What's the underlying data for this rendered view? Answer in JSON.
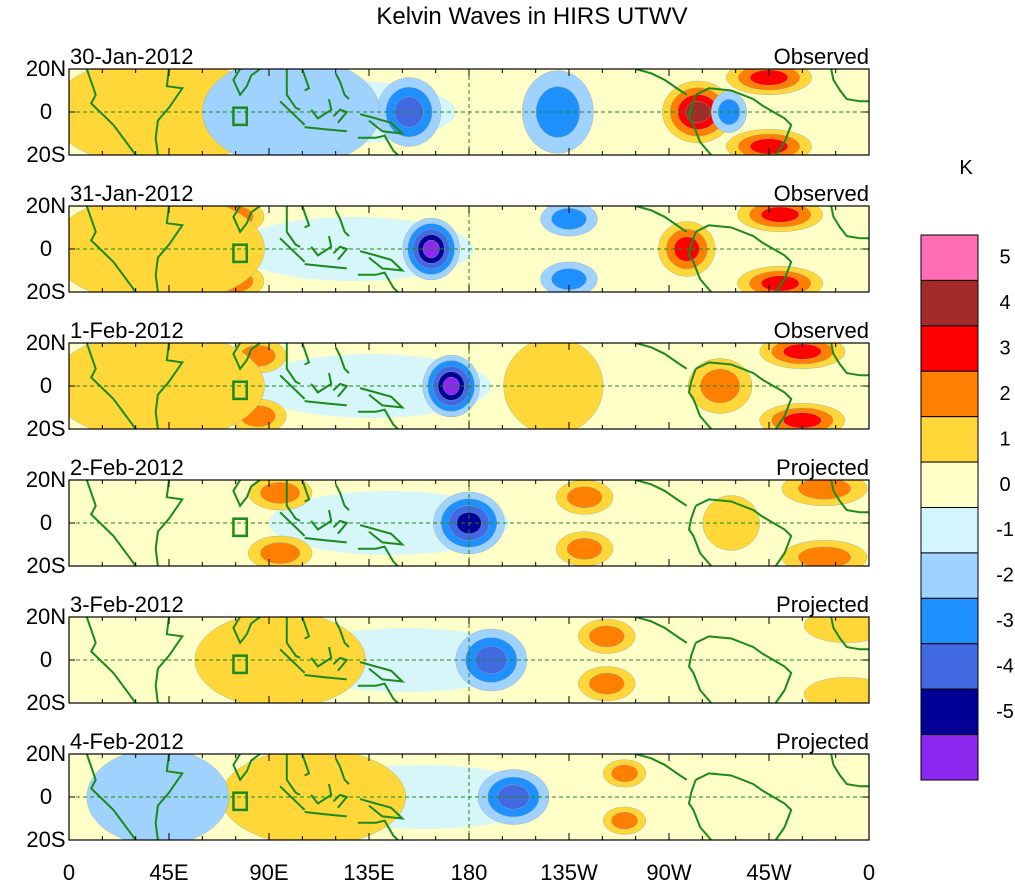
{
  "title": "Kelvin Waves in HIRS UTWV",
  "chart_data": {
    "type": "heatmap",
    "variable": "HIRS UTWV",
    "units_label": "K",
    "lat_ticks": [
      "20N",
      "0",
      "20S"
    ],
    "lat_range": [
      -20,
      20
    ],
    "lon_range": [
      0,
      360
    ],
    "lon_ticks": [
      {
        "lon": 0,
        "label": "0"
      },
      {
        "lon": 45,
        "label": "45E"
      },
      {
        "lon": 90,
        "label": "90E"
      },
      {
        "lon": 135,
        "label": "135E"
      },
      {
        "lon": 180,
        "label": "180"
      },
      {
        "lon": 225,
        "label": "135W"
      },
      {
        "lon": 270,
        "label": "90W"
      },
      {
        "lon": 315,
        "label": "45W"
      },
      {
        "lon": 360,
        "label": "0"
      }
    ],
    "colorbar": {
      "labels": [
        "5",
        "4",
        "3",
        "2",
        "1",
        "0",
        "-1",
        "-2",
        "-3",
        "-4",
        "-5"
      ],
      "colors": [
        "#ff6eb4",
        "#a52a2a",
        "#ff0000",
        "#ff7f00",
        "#ffd738",
        "#ffffc8",
        "#d2f5ff",
        "#a0d2ff",
        "#1e90ff",
        "#4169e1",
        "#000096",
        "#8c28f0"
      ]
    },
    "panels": [
      {
        "date": "30-Jan-2012",
        "kind": "Observed",
        "features": [
          {
            "lon": 283,
            "lat": 0,
            "value": 4,
            "wlon": 10,
            "wlat": 9
          },
          {
            "lon": 297,
            "lat": 0,
            "value": -2,
            "wlon": 5,
            "wlat": 6
          },
          {
            "lon": 315,
            "lat": 16,
            "value": 3,
            "wlon": 12,
            "wlat": 5
          },
          {
            "lon": 315,
            "lat": -16,
            "value": 3,
            "wlon": 12,
            "wlat": 5
          },
          {
            "lon": 153,
            "lat": 0,
            "value": -3,
            "wlon": 9,
            "wlat": 10
          },
          {
            "lon": 220,
            "lat": 0,
            "value": -2,
            "wlon": 10,
            "wlat": 12
          },
          {
            "lon": 40,
            "lat": 0,
            "value": 1,
            "wlon": 30,
            "wlat": 16
          },
          {
            "lon": 100,
            "lat": 0,
            "value": -1,
            "wlon": 25,
            "wlat": 16
          }
        ]
      },
      {
        "date": "31-Jan-2012",
        "kind": "Observed",
        "features": [
          {
            "lon": 163,
            "lat": 0,
            "value": -5,
            "wlon": 8,
            "wlat": 9
          },
          {
            "lon": 278,
            "lat": 0,
            "value": 3,
            "wlon": 8,
            "wlat": 8
          },
          {
            "lon": 320,
            "lat": 16,
            "value": 3,
            "wlon": 12,
            "wlat": 5
          },
          {
            "lon": 320,
            "lat": -16,
            "value": 3,
            "wlon": 12,
            "wlat": 5
          },
          {
            "lon": 75,
            "lat": 15,
            "value": 2,
            "wlon": 8,
            "wlat": 5
          },
          {
            "lon": 75,
            "lat": -15,
            "value": 2,
            "wlon": 8,
            "wlat": 5
          },
          {
            "lon": 225,
            "lat": 14,
            "value": -2,
            "wlon": 8,
            "wlat": 5
          },
          {
            "lon": 225,
            "lat": -14,
            "value": -2,
            "wlon": 8,
            "wlat": 5
          },
          {
            "lon": 40,
            "lat": 0,
            "value": 1,
            "wlon": 30,
            "wlat": 16
          }
        ]
      },
      {
        "date": "1-Feb-2012",
        "kind": "Observed",
        "features": [
          {
            "lon": 172,
            "lat": 0,
            "value": -5,
            "wlon": 8,
            "wlat": 9
          },
          {
            "lon": 293,
            "lat": 0,
            "value": 2,
            "wlon": 9,
            "wlat": 8
          },
          {
            "lon": 330,
            "lat": 16,
            "value": 3,
            "wlon": 12,
            "wlat": 5
          },
          {
            "lon": 330,
            "lat": -16,
            "value": 3,
            "wlon": 12,
            "wlat": 5
          },
          {
            "lon": 85,
            "lat": 14,
            "value": 2,
            "wlon": 8,
            "wlat": 5
          },
          {
            "lon": 85,
            "lat": -14,
            "value": 2,
            "wlon": 8,
            "wlat": 5
          },
          {
            "lon": 218,
            "lat": 0,
            "value": 1,
            "wlon": 14,
            "wlat": 14
          },
          {
            "lon": 40,
            "lat": 0,
            "value": 1,
            "wlon": 30,
            "wlat": 16
          }
        ]
      },
      {
        "date": "2-Feb-2012",
        "kind": "Projected",
        "features": [
          {
            "lon": 180,
            "lat": 0,
            "value": -4,
            "wlon": 10,
            "wlat": 9
          },
          {
            "lon": 232,
            "lat": 12,
            "value": 2,
            "wlon": 8,
            "wlat": 5
          },
          {
            "lon": 232,
            "lat": -12,
            "value": 2,
            "wlon": 8,
            "wlat": 5
          },
          {
            "lon": 95,
            "lat": 14,
            "value": 2,
            "wlon": 9,
            "wlat": 5
          },
          {
            "lon": 95,
            "lat": -14,
            "value": 2,
            "wlon": 9,
            "wlat": 5
          },
          {
            "lon": 298,
            "lat": 0,
            "value": 1,
            "wlon": 8,
            "wlat": 8
          },
          {
            "lon": 340,
            "lat": 16,
            "value": 2,
            "wlon": 12,
            "wlat": 5
          },
          {
            "lon": 340,
            "lat": -16,
            "value": 2,
            "wlon": 12,
            "wlat": 5
          }
        ]
      },
      {
        "date": "3-Feb-2012",
        "kind": "Projected",
        "features": [
          {
            "lon": 190,
            "lat": 0,
            "value": -3,
            "wlon": 10,
            "wlat": 9
          },
          {
            "lon": 242,
            "lat": 11,
            "value": 2,
            "wlon": 8,
            "wlat": 5
          },
          {
            "lon": 242,
            "lat": -11,
            "value": 2,
            "wlon": 8,
            "wlat": 5
          },
          {
            "lon": 103,
            "lat": 0,
            "value": 2,
            "wlon": 6,
            "wlat": 8
          },
          {
            "lon": 95,
            "lat": 0,
            "value": 1,
            "wlon": 24,
            "wlat": 14
          },
          {
            "lon": 350,
            "lat": 16,
            "value": 1,
            "wlon": 12,
            "wlat": 5
          },
          {
            "lon": 350,
            "lat": -16,
            "value": 1,
            "wlon": 12,
            "wlat": 5
          }
        ]
      },
      {
        "date": "4-Feb-2012",
        "kind": "Projected",
        "features": [
          {
            "lon": 200,
            "lat": 0,
            "value": -3,
            "wlon": 10,
            "wlat": 8
          },
          {
            "lon": 250,
            "lat": 11,
            "value": 2,
            "wlon": 6,
            "wlat": 4
          },
          {
            "lon": 250,
            "lat": -11,
            "value": 2,
            "wlon": 6,
            "wlat": 4
          },
          {
            "lon": 110,
            "lat": 0,
            "value": 1,
            "wlon": 26,
            "wlat": 14
          },
          {
            "lon": 40,
            "lat": 0,
            "value": -1,
            "wlon": 20,
            "wlat": 14
          }
        ]
      }
    ]
  }
}
